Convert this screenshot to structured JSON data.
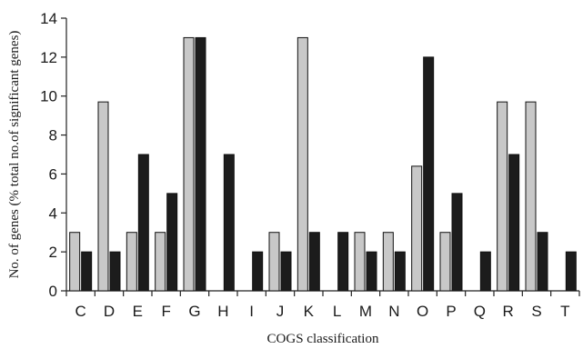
{
  "chart_data": {
    "type": "bar",
    "title": "",
    "xlabel": "COGS classification",
    "ylabel": "No. of genes (% total no.of significant genes)",
    "ylim": [
      0,
      14
    ],
    "yticks": [
      0,
      2,
      4,
      6,
      8,
      10,
      12,
      14
    ],
    "grid": false,
    "legend": "none",
    "categories": [
      "C",
      "D",
      "E",
      "F",
      "G",
      "H",
      "I",
      "J",
      "K",
      "L",
      "M",
      "N",
      "O",
      "P",
      "Q",
      "R",
      "S",
      "T"
    ],
    "series": [
      {
        "color": "#c8c8c8",
        "values": [
          3,
          9.7,
          3,
          3,
          13,
          0,
          0,
          3,
          13,
          0,
          3,
          3,
          6.4,
          3,
          0,
          9.7,
          9.7,
          0
        ]
      },
      {
        "color": "#1c1c1c",
        "values": [
          2,
          2,
          7,
          5,
          13,
          7,
          2,
          2,
          3,
          3,
          2,
          2,
          12,
          5,
          2,
          7,
          3,
          2
        ]
      }
    ]
  }
}
